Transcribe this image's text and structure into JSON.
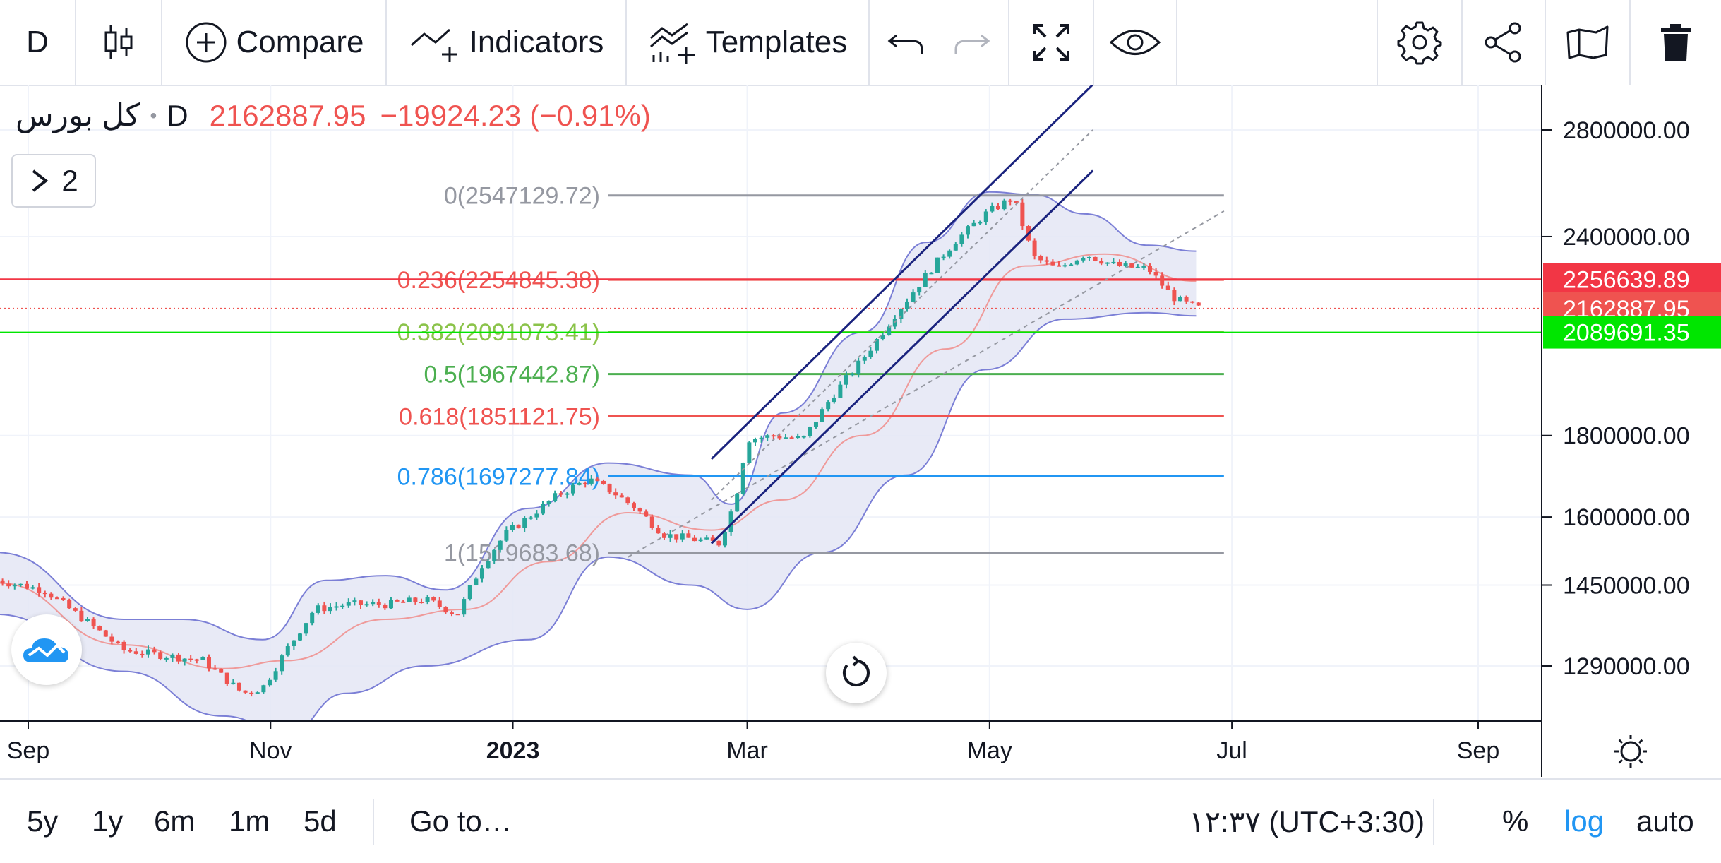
{
  "toolbar": {
    "interval": "D",
    "compare_label": "Compare",
    "indicators_label": "Indicators",
    "templates_label": "Templates"
  },
  "legend": {
    "symbol": "کل بورس",
    "timeframe": "D",
    "last": "2162887.95",
    "change": "−19924.23",
    "change_pct": "(−0.91%)",
    "collapse_count": "2"
  },
  "price_badges": [
    {
      "label": "2256639.89",
      "value": 2256639.89,
      "color": "#f23645"
    },
    {
      "label": "2162887.95",
      "value": 2162887.95,
      "color": "#ef5350"
    },
    {
      "label": "2089691.35",
      "value": 2089691.35,
      "color": "#00e600"
    }
  ],
  "bottombar": {
    "ranges": [
      "5y",
      "1y",
      "6m",
      "1m",
      "5d"
    ],
    "goto_label": "Go to…",
    "clock": "۱۲:۳۷ (UTC+3:30)",
    "percent_label": "%",
    "log_label": "log",
    "auto_label": "auto"
  },
  "colors": {
    "up": "#26a69a",
    "down": "#ef5350",
    "bands_fill": "#e4e6f5",
    "bands_line": "#7b7fd6",
    "channel": "#1a237e",
    "accent": "#2196f3"
  },
  "chart_data": {
    "type": "candlestick",
    "symbol": "کل بورس",
    "timeframe": "D",
    "y_scale": "log",
    "ylim": [
      1150000,
      2950000
    ],
    "y_ticks": [
      {
        "label": "2800000.00",
        "value": 2800000
      },
      {
        "label": "2400000.00",
        "value": 2400000
      },
      {
        "label": "1800000.00",
        "value": 1800000
      },
      {
        "label": "1600000.00",
        "value": 1600000
      },
      {
        "label": "1450000.00",
        "value": 1450000
      },
      {
        "label": "1290000.00",
        "value": 1290000
      }
    ],
    "x_ticks": [
      {
        "label": "Sep",
        "date": "2022-09-01",
        "bold": false
      },
      {
        "label": "Nov",
        "date": "2022-11-01",
        "bold": false
      },
      {
        "label": "2023",
        "date": "2023-01-01",
        "bold": true
      },
      {
        "label": "Mar",
        "date": "2023-03-01",
        "bold": false
      },
      {
        "label": "May",
        "date": "2023-05-01",
        "bold": false
      },
      {
        "label": "Jul",
        "date": "2023-07-01",
        "bold": false
      },
      {
        "label": "Sep",
        "date": "2023-09-01",
        "bold": false
      }
    ],
    "close_path": [
      [
        "2022-08-24",
        1460000
      ],
      [
        "2022-09-05",
        1440000
      ],
      [
        "2022-09-15",
        1380000
      ],
      [
        "2022-09-25",
        1320000
      ],
      [
        "2022-10-05",
        1310000
      ],
      [
        "2022-10-15",
        1300000
      ],
      [
        "2022-10-25",
        1240000
      ],
      [
        "2022-10-30",
        1250000
      ],
      [
        "2022-11-05",
        1320000
      ],
      [
        "2022-11-12",
        1400000
      ],
      [
        "2022-11-20",
        1410000
      ],
      [
        "2022-11-30",
        1410000
      ],
      [
        "2022-12-10",
        1420000
      ],
      [
        "2022-12-18",
        1390000
      ],
      [
        "2022-12-24",
        1490000
      ],
      [
        "2022-12-30",
        1560000
      ],
      [
        "2023-01-05",
        1600000
      ],
      [
        "2023-01-12",
        1650000
      ],
      [
        "2023-01-20",
        1690000
      ],
      [
        "2023-01-26",
        1660000
      ],
      [
        "2023-02-01",
        1620000
      ],
      [
        "2023-02-08",
        1560000
      ],
      [
        "2023-02-15",
        1550000
      ],
      [
        "2023-02-22",
        1540000
      ],
      [
        "2023-02-26",
        1640000
      ],
      [
        "2023-03-01",
        1790000
      ],
      [
        "2023-03-08",
        1800000
      ],
      [
        "2023-03-15",
        1790000
      ],
      [
        "2023-03-22",
        1900000
      ],
      [
        "2023-03-30",
        2010000
      ],
      [
        "2023-04-07",
        2140000
      ],
      [
        "2023-04-15",
        2270000
      ],
      [
        "2023-04-22",
        2380000
      ],
      [
        "2023-04-30",
        2480000
      ],
      [
        "2023-05-07",
        2540000
      ],
      [
        "2023-05-12",
        2330000
      ],
      [
        "2023-05-18",
        2290000
      ],
      [
        "2023-05-25",
        2340000
      ],
      [
        "2023-06-02",
        2300000
      ],
      [
        "2023-06-10",
        2290000
      ],
      [
        "2023-06-16",
        2200000
      ],
      [
        "2023-06-20",
        2175000
      ],
      [
        "2023-06-23",
        2162887.95
      ]
    ],
    "bollinger_upper": [
      [
        "2022-08-24",
        1520000
      ],
      [
        "2022-09-25",
        1380000
      ],
      [
        "2022-10-10",
        1380000
      ],
      [
        "2022-10-30",
        1340000
      ],
      [
        "2022-11-15",
        1460000
      ],
      [
        "2022-11-30",
        1470000
      ],
      [
        "2022-12-15",
        1440000
      ],
      [
        "2023-01-05",
        1620000
      ],
      [
        "2023-01-25",
        1730000
      ],
      [
        "2023-02-15",
        1700000
      ],
      [
        "2023-02-25",
        1630000
      ],
      [
        "2023-03-10",
        1860000
      ],
      [
        "2023-03-30",
        2090000
      ],
      [
        "2023-04-15",
        2380000
      ],
      [
        "2023-05-01",
        2560000
      ],
      [
        "2023-05-12",
        2550000
      ],
      [
        "2023-05-25",
        2480000
      ],
      [
        "2023-06-10",
        2370000
      ],
      [
        "2023-06-22",
        2350000
      ]
    ],
    "bollinger_lower": [
      [
        "2022-08-24",
        1390000
      ],
      [
        "2022-09-25",
        1280000
      ],
      [
        "2022-10-20",
        1200000
      ],
      [
        "2022-11-05",
        1170000
      ],
      [
        "2022-11-20",
        1240000
      ],
      [
        "2022-12-10",
        1290000
      ],
      [
        "2023-01-05",
        1340000
      ],
      [
        "2023-01-25",
        1510000
      ],
      [
        "2023-02-15",
        1450000
      ],
      [
        "2023-03-01",
        1400000
      ],
      [
        "2023-03-20",
        1520000
      ],
      [
        "2023-04-10",
        1700000
      ],
      [
        "2023-04-30",
        1980000
      ],
      [
        "2023-05-20",
        2130000
      ],
      [
        "2023-06-10",
        2150000
      ],
      [
        "2023-06-22",
        2140000
      ]
    ],
    "bollinger_middle": [
      [
        "2022-08-24",
        1455000
      ],
      [
        "2022-09-25",
        1330000
      ],
      [
        "2022-10-20",
        1285000
      ],
      [
        "2022-11-05",
        1300000
      ],
      [
        "2022-11-30",
        1380000
      ],
      [
        "2022-12-20",
        1400000
      ],
      [
        "2023-01-10",
        1500000
      ],
      [
        "2023-01-30",
        1610000
      ],
      [
        "2023-02-20",
        1570000
      ],
      [
        "2023-03-10",
        1640000
      ],
      [
        "2023-03-30",
        1800000
      ],
      [
        "2023-04-20",
        2040000
      ],
      [
        "2023-05-10",
        2300000
      ],
      [
        "2023-05-30",
        2340000
      ],
      [
        "2023-06-22",
        2250000
      ]
    ],
    "fibonacci": {
      "start_date": "2023-01-25",
      "end_date": "2023-06-29",
      "levels": [
        {
          "label": "0(2547129.72)",
          "value": 2547129.72,
          "color": "#9598a1"
        },
        {
          "label": "0.236(2254845.38)",
          "value": 2254845.38,
          "color": "#ef5350"
        },
        {
          "label": "0.382(2091073.41)",
          "value": 2091073.41,
          "color": "#8bc34a"
        },
        {
          "label": "0.5(1967442.87)",
          "value": 1967442.87,
          "color": "#4caf50"
        },
        {
          "label": "0.618(1851121.75)",
          "value": 1851121.75,
          "color": "#ef5350"
        },
        {
          "label": "0.786(1697277.84)",
          "value": 1697277.84,
          "color": "#2196f3"
        },
        {
          "label": "1(1519683.68)",
          "value": 1519683.68,
          "color": "#9598a1"
        }
      ]
    },
    "horizontal_lines": [
      {
        "value": 2256639.89,
        "color": "#f23645"
      },
      {
        "value": 2089691.35,
        "color": "#00e600"
      }
    ],
    "last_price_line": {
      "value": 2162887.95,
      "color": "#ef5350"
    },
    "channel": {
      "lower": [
        [
          "2023-02-20",
          1540000
        ],
        [
          "2023-05-27",
          2640000
        ]
      ],
      "upper": [
        [
          "2023-02-20",
          1740000
        ],
        [
          "2023-05-27",
          2990000
        ]
      ],
      "median": [
        [
          "2023-02-20",
          1640000
        ],
        [
          "2023-05-27",
          2800000
        ]
      ]
    },
    "trendline": [
      [
        "2023-01-30",
        1510000
      ],
      [
        "2023-06-29",
        2490000
      ]
    ]
  }
}
